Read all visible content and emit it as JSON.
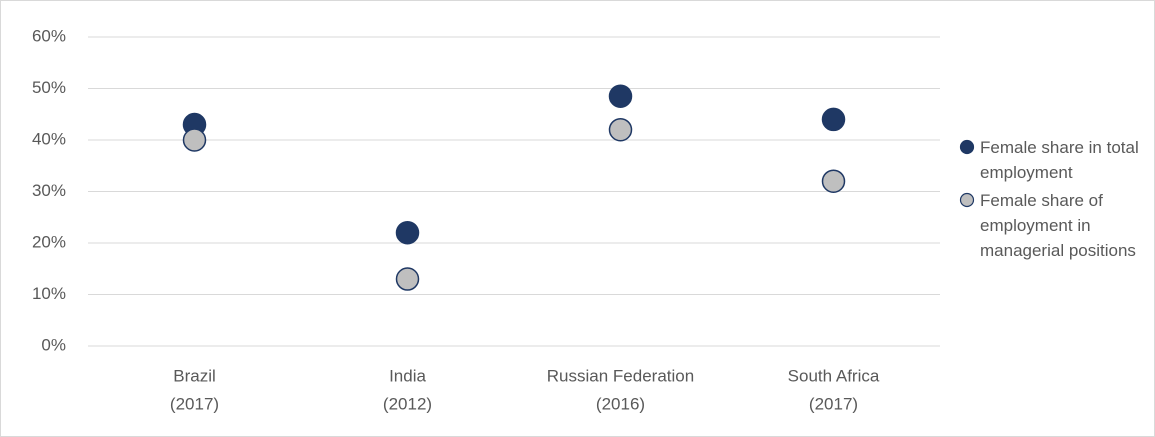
{
  "chart_data": {
    "type": "dot",
    "categories": [
      [
        "Brazil",
        "(2017)"
      ],
      [
        "India",
        "(2012)"
      ],
      [
        "Russian Federation",
        "(2016)"
      ],
      [
        "South Africa",
        "(2017)"
      ]
    ],
    "series": [
      {
        "name": "Female share in total employment",
        "color": "#1f3864",
        "values": [
          43,
          22,
          48.5,
          44
        ]
      },
      {
        "name": "Female share of employment in managerial positions",
        "color": "#bfbfbf",
        "values": [
          40,
          13,
          42,
          32
        ]
      }
    ],
    "ylim": [
      0,
      60
    ],
    "yticks": [
      {
        "value": 0,
        "label": "0%"
      },
      {
        "value": 10,
        "label": "10%"
      },
      {
        "value": 20,
        "label": "20%"
      },
      {
        "value": 30,
        "label": "30%"
      },
      {
        "value": 40,
        "label": "40%"
      },
      {
        "value": 50,
        "label": "50%"
      },
      {
        "value": 60,
        "label": "60%"
      }
    ],
    "grid": true,
    "legend": "right"
  }
}
